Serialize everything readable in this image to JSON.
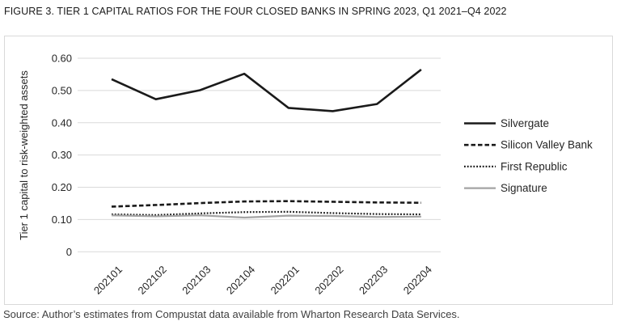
{
  "figure": {
    "title": "FIGURE 3. TIER 1 CAPITAL RATIOS FOR THE FOUR CLOSED BANKS IN SPRING 2023, Q1 2021–Q4 2022",
    "source": "Source: Author’s estimates from Compustat data available from Wharton Research Data Services."
  },
  "chart_data": {
    "type": "line",
    "title": "Tier 1 capital ratios for the four closed banks, Q1 2021–Q4 2022",
    "xlabel": "",
    "ylabel": "Tier 1 capital to risk-weighted assets",
    "categories": [
      "202101",
      "202102",
      "202103",
      "202104",
      "202201",
      "202202",
      "202203",
      "202204"
    ],
    "y_ticks": [
      "0.60",
      "0.50",
      "0.40",
      "0.30",
      "0.20",
      "0.10",
      "0"
    ],
    "ylim": [
      0,
      0.6
    ],
    "grid": true,
    "legend_position": "right",
    "colors": {
      "black": "#1a1a1a",
      "gray": "#a3a3a3",
      "gridline": "#d9d9d9"
    },
    "series": [
      {
        "name": "Silvergate",
        "style": "solid",
        "color": "#1a1a1a",
        "values": [
          0.535,
          0.473,
          0.501,
          0.552,
          0.446,
          0.436,
          0.458,
          0.565
        ]
      },
      {
        "name": "Silicon Valley Bank",
        "style": "dashed",
        "color": "#1a1a1a",
        "values": [
          0.14,
          0.145,
          0.151,
          0.156,
          0.157,
          0.155,
          0.153,
          0.152
        ]
      },
      {
        "name": "First Republic",
        "style": "dotted",
        "color": "#1a1a1a",
        "values": [
          0.116,
          0.114,
          0.119,
          0.123,
          0.124,
          0.12,
          0.117,
          0.116
        ]
      },
      {
        "name": "Signature",
        "style": "solid",
        "color": "#a3a3a3",
        "values": [
          0.113,
          0.11,
          0.113,
          0.106,
          0.112,
          0.111,
          0.108,
          0.109
        ]
      }
    ]
  }
}
